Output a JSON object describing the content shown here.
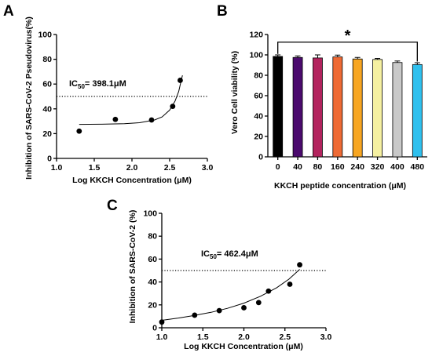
{
  "chart_data": [
    {
      "panel": "A",
      "type": "scatter",
      "xlabel": "Log KKCH Concentration (μM)",
      "ylabel": "Inhibition of SARS-CoV-2 Pseudovirus(%)",
      "xlim": [
        1.0,
        3.0
      ],
      "ylim": [
        0,
        100
      ],
      "xticks": [
        "1.0",
        "1.5",
        "2.0",
        "2.5",
        "3.0"
      ],
      "yticks": [
        "0",
        "20",
        "40",
        "60",
        "80",
        "100"
      ],
      "points": [
        {
          "x": 1.3,
          "y": 22
        },
        {
          "x": 1.78,
          "y": 31.5
        },
        {
          "x": 2.26,
          "y": 31
        },
        {
          "x": 2.54,
          "y": 42
        },
        {
          "x": 2.64,
          "y": 63
        }
      ],
      "fit_curve": [
        [
          1.3,
          27.5
        ],
        [
          1.6,
          27.6
        ],
        [
          1.9,
          28.0
        ],
        [
          2.1,
          28.8
        ],
        [
          2.3,
          31.0
        ],
        [
          2.4,
          33.5
        ],
        [
          2.5,
          39.0
        ],
        [
          2.57,
          46.0
        ],
        [
          2.62,
          54.0
        ],
        [
          2.65,
          62.0
        ],
        [
          2.67,
          67.0
        ]
      ],
      "reference_line_y": 50,
      "annotation": {
        "text": "IC",
        "sub": "50",
        "value": "= 398.1μM"
      }
    },
    {
      "panel": "B",
      "type": "bar",
      "xlabel": "KKCH peptide concentration (μM)",
      "ylabel": "Vero Cell viability (%)",
      "ylim": [
        0,
        120
      ],
      "yticks": [
        "0",
        "20",
        "40",
        "60",
        "80",
        "100",
        "120"
      ],
      "categories": [
        "0",
        "40",
        "80",
        "160",
        "240",
        "320",
        "400",
        "480"
      ],
      "values": [
        98.5,
        97.5,
        97,
        98,
        96,
        95.5,
        92.5,
        90.5
      ],
      "errors": [
        1.5,
        1.5,
        3,
        1.8,
        1.5,
        1,
        1.5,
        1.8
      ],
      "colors": [
        "#000000",
        "#4b0a6e",
        "#b3245e",
        "#ee6a35",
        "#f7a622",
        "#f5f0a1",
        "#c9c9c9",
        "#2fc0ee"
      ],
      "significance": {
        "from": "0",
        "to": "480",
        "symbol": "*"
      }
    },
    {
      "panel": "C",
      "type": "scatter",
      "xlabel": "Log KKCH Concentration (μM)",
      "ylabel": "Inhibition of SARS-CoV-2 (%)",
      "xlim": [
        1.0,
        3.0
      ],
      "ylim": [
        0,
        100
      ],
      "xticks": [
        "1.0",
        "1.5",
        "2.0",
        "2.5",
        "3.0"
      ],
      "yticks": [
        "0",
        "20",
        "40",
        "60",
        "80",
        "100"
      ],
      "points": [
        {
          "x": 1.0,
          "y": 5
        },
        {
          "x": 1.4,
          "y": 11
        },
        {
          "x": 1.7,
          "y": 15
        },
        {
          "x": 2.0,
          "y": 17.5
        },
        {
          "x": 2.18,
          "y": 22
        },
        {
          "x": 2.3,
          "y": 32
        },
        {
          "x": 2.56,
          "y": 38
        },
        {
          "x": 2.68,
          "y": 55
        }
      ],
      "fit_curve": [
        [
          1.0,
          6.5
        ],
        [
          1.2,
          8.5
        ],
        [
          1.4,
          10.8
        ],
        [
          1.6,
          13.5
        ],
        [
          1.8,
          17.0
        ],
        [
          2.0,
          21.5
        ],
        [
          2.2,
          27.5
        ],
        [
          2.4,
          35.0
        ],
        [
          2.55,
          42.5
        ],
        [
          2.68,
          51.0
        ]
      ],
      "reference_line_y": 50,
      "annotation": {
        "text": "IC",
        "sub": "50",
        "value": "= 462.4μM"
      }
    }
  ]
}
